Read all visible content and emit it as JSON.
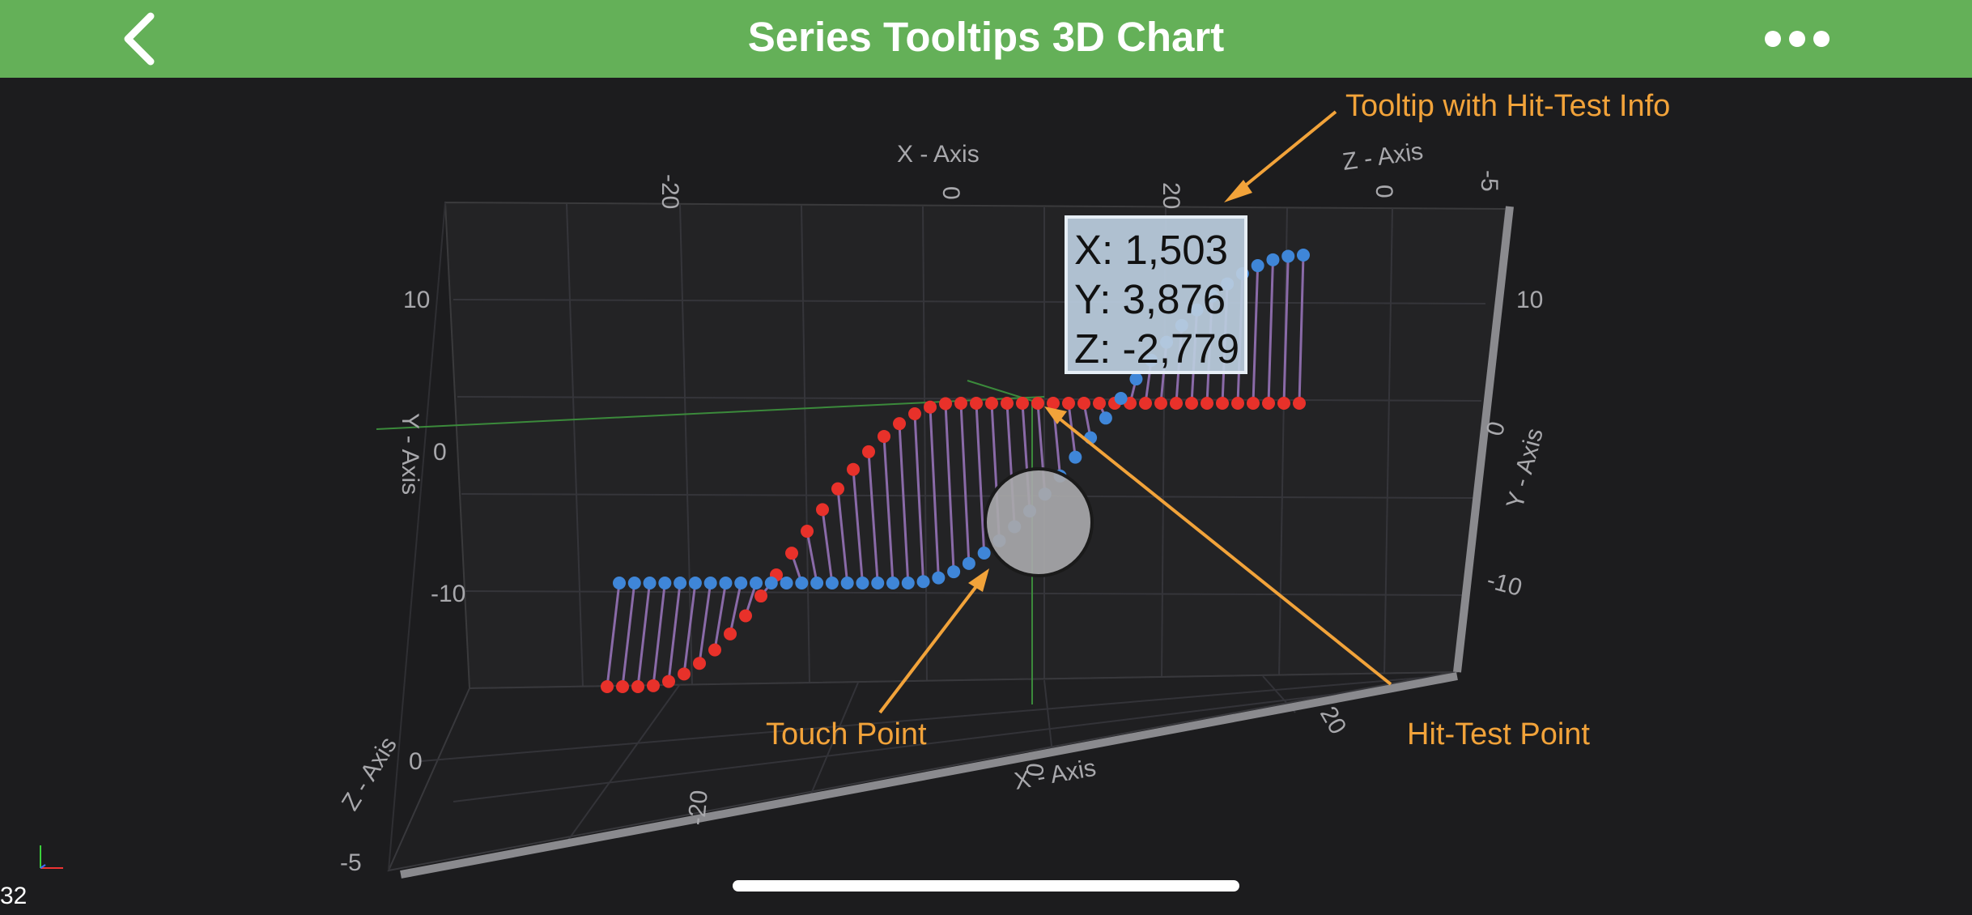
{
  "header": {
    "title": "Series Tooltips 3D Chart",
    "back_icon": "chevron-left-icon",
    "more_icon": "ellipsis-icon"
  },
  "chart_data": {
    "type": "scatter",
    "axes": {
      "x": {
        "title": "X - Axis",
        "ticks": [
          "-20",
          "0",
          "20"
        ]
      },
      "y": {
        "title": "Y - Axis",
        "ticks": [
          "-10",
          "0",
          "10"
        ]
      },
      "z": {
        "title": "Z - Axis",
        "ticks": [
          "-5",
          "0"
        ]
      }
    },
    "series": [
      {
        "color": "#e8312a"
      },
      {
        "color": "#3f86d8"
      }
    ],
    "tooltip": {
      "x": "X: 1,503",
      "y": "Y: 3,876",
      "z": "Z: -2,779"
    }
  },
  "annotations": {
    "tooltip_label": "Tooltip with Hit-Test Info",
    "touch_label": "Touch Point",
    "hit_label": "Hit-Test Point",
    "color": "#f2a33a"
  },
  "status": {
    "fps": "32"
  }
}
